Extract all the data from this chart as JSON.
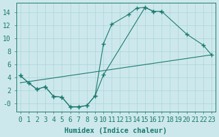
{
  "bg_color": "#cde8ec",
  "grid_color": "#a8d4d8",
  "line_color": "#1a7a6e",
  "xlabel": "Humidex (Indice chaleur)",
  "xlim": [
    -0.5,
    23.5
  ],
  "ylim": [
    -1.2,
    15.5
  ],
  "xticks": [
    0,
    1,
    2,
    3,
    4,
    5,
    6,
    7,
    8,
    9,
    10,
    11,
    12,
    13,
    14,
    15,
    16,
    17,
    18,
    19,
    20,
    21,
    22,
    23
  ],
  "yticks": [
    0,
    2,
    4,
    6,
    8,
    10,
    12,
    14
  ],
  "ytick_labels": [
    "-0",
    "2",
    "4",
    "6",
    "8",
    "10",
    "12",
    "14"
  ],
  "curve_big_x": [
    0,
    1,
    2,
    3,
    4,
    5,
    6,
    7,
    8,
    9,
    10,
    11,
    13,
    14,
    15,
    16,
    17
  ],
  "curve_big_y": [
    4.3,
    3.2,
    2.2,
    2.6,
    1.1,
    1.0,
    -0.5,
    -0.5,
    -0.3,
    1.2,
    9.2,
    12.2,
    13.7,
    14.7,
    14.8,
    14.2,
    14.2
  ],
  "curve_wide_x": [
    0,
    1,
    2,
    3,
    4,
    5,
    6,
    7,
    8,
    9,
    10,
    15,
    16,
    17,
    20,
    22,
    23
  ],
  "curve_wide_y": [
    4.3,
    3.2,
    2.2,
    2.6,
    1.1,
    1.0,
    -0.5,
    -0.5,
    -0.3,
    1.2,
    4.4,
    14.8,
    14.2,
    14.2,
    10.7,
    9.0,
    7.5
  ],
  "curve_line_x": [
    0,
    23
  ],
  "curve_line_y": [
    3.2,
    7.5
  ],
  "tick_fontsize": 7,
  "label_fontsize": 7.5
}
